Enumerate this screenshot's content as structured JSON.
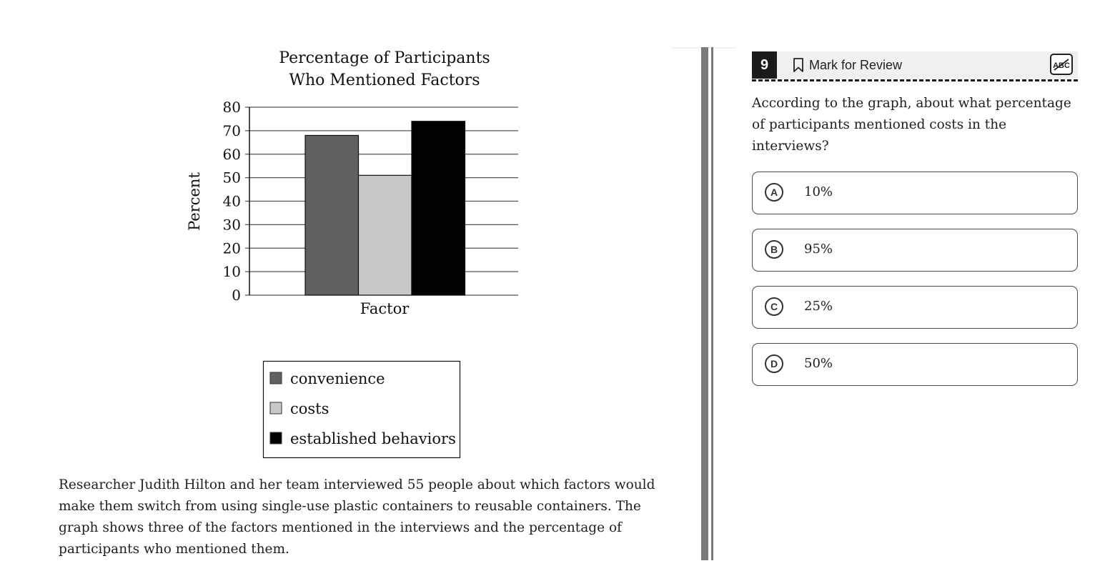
{
  "chart_data": {
    "type": "bar",
    "title": [
      "Percentage of Participants",
      "Who Mentioned Factors"
    ],
    "xlabel": "Factor",
    "ylabel": "Percent",
    "ylim": [
      0,
      80
    ],
    "yticks": [
      0,
      10,
      20,
      30,
      40,
      50,
      60,
      70,
      80
    ],
    "categories": [
      "convenience",
      "costs",
      "established behaviors"
    ],
    "values": [
      68,
      51,
      74
    ],
    "colors": [
      "#616161",
      "#c8c8c8",
      "#000000"
    ],
    "grid": true,
    "legend": {
      "placement": "below",
      "entries": [
        "convenience",
        "costs",
        "established behaviors"
      ]
    }
  },
  "passage": "Researcher Judith Hilton and her team interviewed 55 people about which factors would make them switch from using single-use plastic containers to reusable containers. The graph shows three of the factors mentioned in the interviews and the percentage of participants who mentioned them.",
  "question": {
    "number": "9",
    "mark_for_review_label": "Mark for Review",
    "bookmark_icon": "bookmark-icon",
    "abc_icon": "abc-strikethrough-icon",
    "stem": "According to the graph, about what percentage of participants mentioned costs in the interviews?",
    "choices": [
      {
        "letter": "A",
        "text": "10%"
      },
      {
        "letter": "B",
        "text": "95%"
      },
      {
        "letter": "C",
        "text": "25%"
      },
      {
        "letter": "D",
        "text": "50%"
      }
    ]
  }
}
